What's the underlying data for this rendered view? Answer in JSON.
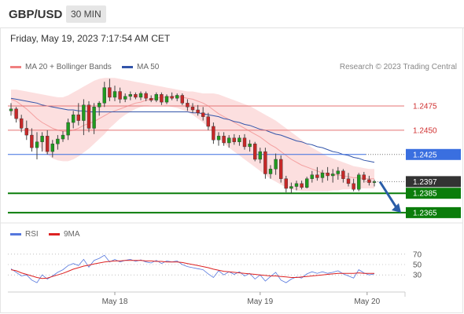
{
  "header": {
    "pair": "GBP/USD",
    "timeframe": "30 MIN"
  },
  "datetime": "Friday, May 19, 2023 7:17:54 AM CET",
  "credit": "Research © 2023 Trading Central",
  "colors": {
    "bollinger": "#f08080",
    "ma50": "#3355aa",
    "resistance": "#e57373",
    "pivot": "#3a6fe0",
    "support": "#0b7d0b",
    "rsi": "#5577dd",
    "rsi_ma": "#dd2222",
    "arrow": "#2a5da8"
  },
  "chart_data": [
    {
      "type": "candlestick",
      "legend": [
        {
          "name": "MA 20 + Bollinger Bands",
          "color": "#f08080"
        },
        {
          "name": "MA 50",
          "color": "#3355aa"
        }
      ],
      "ylim": [
        1.2356,
        1.2505
      ],
      "levels": [
        {
          "label": "1.2475",
          "value": 1.2475,
          "kind": "resistance"
        },
        {
          "label": "1.2450",
          "value": 1.245,
          "kind": "resistance"
        },
        {
          "label": "1.2425",
          "value": 1.2425,
          "kind": "pivot"
        },
        {
          "label": "1.2397",
          "value": 1.2397,
          "kind": "last"
        },
        {
          "label": "1.2385",
          "value": 1.2385,
          "kind": "support"
        },
        {
          "label": "1.2365",
          "value": 1.2365,
          "kind": "support"
        }
      ],
      "candles": [
        [
          1.247,
          1.2478,
          1.2465,
          1.2472
        ],
        [
          1.2472,
          1.2474,
          1.2458,
          1.2462
        ],
        [
          1.2462,
          1.2466,
          1.2448,
          1.2452
        ],
        [
          1.2452,
          1.246,
          1.244,
          1.2445
        ],
        [
          1.2445,
          1.2452,
          1.2428,
          1.2432
        ],
        [
          1.2432,
          1.2448,
          1.242,
          1.2438
        ],
        [
          1.2438,
          1.2448,
          1.2428,
          1.2444
        ],
        [
          1.2444,
          1.245,
          1.2425,
          1.2428
        ],
        [
          1.2428,
          1.244,
          1.2422,
          1.2436
        ],
        [
          1.2436,
          1.2445,
          1.243,
          1.2441
        ],
        [
          1.2441,
          1.2449,
          1.2438,
          1.2445
        ],
        [
          1.2445,
          1.2462,
          1.244,
          1.2458
        ],
        [
          1.2458,
          1.247,
          1.2452,
          1.2466
        ],
        [
          1.2466,
          1.2478,
          1.2455,
          1.246
        ],
        [
          1.246,
          1.2482,
          1.2445,
          1.2476
        ],
        [
          1.2476,
          1.248,
          1.2448,
          1.2452
        ],
        [
          1.2452,
          1.2478,
          1.2446,
          1.2474
        ],
        [
          1.2474,
          1.248,
          1.2465,
          1.2478
        ],
        [
          1.2478,
          1.25,
          1.2474,
          1.2494
        ],
        [
          1.2494,
          1.2503,
          1.248,
          1.2484
        ],
        [
          1.2484,
          1.2496,
          1.248,
          1.249
        ],
        [
          1.249,
          1.2494,
          1.2478,
          1.2482
        ],
        [
          1.2482,
          1.2488,
          1.2479,
          1.2485
        ],
        [
          1.2485,
          1.249,
          1.2481,
          1.2487
        ],
        [
          1.2487,
          1.2489,
          1.2482,
          1.2484
        ],
        [
          1.2484,
          1.249,
          1.2481,
          1.2488
        ],
        [
          1.2488,
          1.249,
          1.248,
          1.2483
        ],
        [
          1.2483,
          1.2486,
          1.2479,
          1.2481
        ],
        [
          1.2481,
          1.2489,
          1.2479,
          1.2487
        ],
        [
          1.2487,
          1.2489,
          1.2476,
          1.2479
        ],
        [
          1.2479,
          1.2487,
          1.2477,
          1.2485
        ],
        [
          1.2485,
          1.2489,
          1.2481,
          1.2483
        ],
        [
          1.2483,
          1.2488,
          1.248,
          1.2486
        ],
        [
          1.2486,
          1.2488,
          1.2476,
          1.2478
        ],
        [
          1.2478,
          1.2482,
          1.247,
          1.2474
        ],
        [
          1.2474,
          1.2478,
          1.2468,
          1.2471
        ],
        [
          1.2471,
          1.2476,
          1.2465,
          1.2468
        ],
        [
          1.2468,
          1.2474,
          1.246,
          1.2464
        ],
        [
          1.2464,
          1.2468,
          1.245,
          1.2454
        ],
        [
          1.2454,
          1.2458,
          1.2436,
          1.244
        ],
        [
          1.244,
          1.2448,
          1.2434,
          1.2444
        ],
        [
          1.2444,
          1.2448,
          1.2434,
          1.2437
        ],
        [
          1.2437,
          1.2445,
          1.2432,
          1.2442
        ],
        [
          1.2442,
          1.2446,
          1.2435,
          1.2438
        ],
        [
          1.2438,
          1.2445,
          1.2434,
          1.2442
        ],
        [
          1.2442,
          1.2446,
          1.243,
          1.2433
        ],
        [
          1.2433,
          1.244,
          1.2428,
          1.2436
        ],
        [
          1.2436,
          1.2438,
          1.2418,
          1.242
        ],
        [
          1.242,
          1.2432,
          1.2416,
          1.2428
        ],
        [
          1.2428,
          1.2432,
          1.24,
          1.2405
        ],
        [
          1.2405,
          1.2414,
          1.24,
          1.241
        ],
        [
          1.241,
          1.2426,
          1.2404,
          1.242
        ],
        [
          1.242,
          1.2424,
          1.2396,
          1.24
        ],
        [
          1.24,
          1.2403,
          1.2386,
          1.239
        ],
        [
          1.239,
          1.2396,
          1.2385,
          1.2392
        ],
        [
          1.2392,
          1.2398,
          1.2388,
          1.2395
        ],
        [
          1.2395,
          1.2398,
          1.2389,
          1.2391
        ],
        [
          1.2391,
          1.2402,
          1.239,
          1.24
        ],
        [
          1.24,
          1.2408,
          1.2396,
          1.2404
        ],
        [
          1.2404,
          1.2412,
          1.2398,
          1.2401
        ],
        [
          1.2401,
          1.2409,
          1.2396,
          1.2406
        ],
        [
          1.2406,
          1.2412,
          1.2398,
          1.2403
        ],
        [
          1.2403,
          1.241,
          1.2396,
          1.2405
        ],
        [
          1.2405,
          1.2412,
          1.2399,
          1.2408
        ],
        [
          1.2408,
          1.241,
          1.2396,
          1.24
        ],
        [
          1.24,
          1.2406,
          1.2392,
          1.2395
        ],
        [
          1.2395,
          1.24,
          1.2387,
          1.2389
        ],
        [
          1.2389,
          1.2406,
          1.2387,
          1.2404
        ],
        [
          1.2404,
          1.2407,
          1.2396,
          1.2399
        ],
        [
          1.2399,
          1.2403,
          1.2393,
          1.2396
        ],
        [
          1.2396,
          1.2399,
          1.2392,
          1.2397
        ]
      ],
      "ma20": [
        1.2482,
        1.248,
        1.2476,
        1.2472,
        1.2467,
        1.2462,
        1.2458,
        1.2455,
        1.2452,
        1.245,
        1.2449,
        1.2449,
        1.245,
        1.2452,
        1.2455,
        1.2457,
        1.2459,
        1.2462,
        1.2465,
        1.2468,
        1.247,
        1.2472,
        1.2474,
        1.2476,
        1.2478,
        1.2479,
        1.2481,
        1.2482,
        1.2483,
        1.2484,
        1.2484,
        1.2485,
        1.2485,
        1.2484,
        1.2483,
        1.2482,
        1.248,
        1.2478,
        1.2475,
        1.2471,
        1.2467,
        1.2464,
        1.2461,
        1.2458,
        1.2455,
        1.2452,
        1.2449,
        1.2446,
        1.2443,
        1.2439,
        1.2435,
        1.2432,
        1.2428,
        1.2424,
        1.242,
        1.2417,
        1.2414,
        1.2412,
        1.241,
        1.2408,
        1.2406,
        1.2405,
        1.2404,
        1.2404,
        1.2403,
        1.2402,
        1.2401,
        1.2401,
        1.24,
        1.24,
        1.24
      ],
      "bb_upper": [
        1.2492,
        1.2492,
        1.2491,
        1.249,
        1.2489,
        1.2488,
        1.2487,
        1.2486,
        1.2485,
        1.2484,
        1.2484,
        1.2486,
        1.2489,
        1.2492,
        1.2495,
        1.2498,
        1.2501,
        1.2503,
        1.2504,
        1.2504,
        1.2504,
        1.2503,
        1.2502,
        1.2501,
        1.25,
        1.2499,
        1.2498,
        1.2497,
        1.2496,
        1.2495,
        1.2494,
        1.2493,
        1.2492,
        1.2491,
        1.249,
        1.249,
        1.2489,
        1.2488,
        1.2488,
        1.2488,
        1.2487,
        1.2485,
        1.2483,
        1.2481,
        1.2479,
        1.2477,
        1.2475,
        1.2472,
        1.2469,
        1.2466,
        1.2463,
        1.246,
        1.2456,
        1.2452,
        1.2448,
        1.2444,
        1.244,
        1.2436,
        1.2432,
        1.2429,
        1.2426,
        1.2423,
        1.2421,
        1.2419,
        1.2417,
        1.2415,
        1.2413,
        1.2412,
        1.2411,
        1.241,
        1.241
      ],
      "bb_lower": [
        1.2468,
        1.2462,
        1.2456,
        1.245,
        1.2443,
        1.2436,
        1.243,
        1.2425,
        1.2421,
        1.2419,
        1.2418,
        1.2418,
        1.242,
        1.2423,
        1.2427,
        1.2431,
        1.2436,
        1.2441,
        1.2446,
        1.2452,
        1.2457,
        1.2462,
        1.2466,
        1.2469,
        1.2472,
        1.2474,
        1.2475,
        1.2476,
        1.2476,
        1.2476,
        1.2475,
        1.2474,
        1.2473,
        1.2471,
        1.2469,
        1.2466,
        1.2462,
        1.2458,
        1.2453,
        1.2447,
        1.2442,
        1.2437,
        1.2432,
        1.2428,
        1.2424,
        1.242,
        1.2416,
        1.2412,
        1.2408,
        1.2404,
        1.24,
        1.2397,
        1.2394,
        1.2391,
        1.2389,
        1.2388,
        1.2387,
        1.2387,
        1.2387,
        1.2387,
        1.2387,
        1.2387,
        1.2388,
        1.2388,
        1.2389,
        1.2389,
        1.239,
        1.239,
        1.239,
        1.239,
        1.239
      ],
      "ma50": [
        1.2483,
        1.2482,
        1.2481,
        1.248,
        1.2479,
        1.2478,
        1.2476,
        1.2475,
        1.2474,
        1.2473,
        1.2472,
        1.2471,
        1.2471,
        1.247,
        1.247,
        1.2469,
        1.2469,
        1.2469,
        1.2469,
        1.2469,
        1.2469,
        1.2469,
        1.2469,
        1.2469,
        1.2469,
        1.2469,
        1.2469,
        1.2469,
        1.2469,
        1.2469,
        1.2469,
        1.2469,
        1.2469,
        1.2469,
        1.2469,
        1.2468,
        1.2468,
        1.2467,
        1.2466,
        1.2465,
        1.2464,
        1.2462,
        1.2461,
        1.2459,
        1.2458,
        1.2456,
        1.2455,
        1.2453,
        1.2451,
        1.245,
        1.2448,
        1.2446,
        1.2445,
        1.2443,
        1.2441,
        1.2439,
        1.2438,
        1.2436,
        1.2435,
        1.2433,
        1.2432,
        1.243,
        1.2428,
        1.2427,
        1.2425,
        1.2424,
        1.2422,
        1.2421,
        1.2419,
        1.2418,
        1.2417
      ],
      "forecast": {
        "from": 1.2397,
        "to": 1.2365
      }
    },
    {
      "type": "line",
      "legend": [
        {
          "name": "RSI",
          "color": "#5577dd"
        },
        {
          "name": "9MA",
          "color": "#dd2222"
        }
      ],
      "ylim": [
        0,
        100
      ],
      "yticks": [
        70,
        50,
        30
      ],
      "rsi": [
        42,
        35,
        28,
        30,
        20,
        15,
        30,
        22,
        28,
        35,
        40,
        48,
        52,
        48,
        60,
        45,
        58,
        62,
        68,
        55,
        60,
        55,
        58,
        60,
        56,
        59,
        55,
        53,
        58,
        52,
        57,
        55,
        57,
        50,
        46,
        44,
        42,
        40,
        32,
        25,
        38,
        30,
        36,
        31,
        36,
        28,
        33,
        22,
        30,
        18,
        27,
        35,
        20,
        15,
        22,
        26,
        24,
        32,
        36,
        33,
        36,
        33,
        35,
        38,
        32,
        28,
        24,
        40,
        34,
        30,
        32
      ],
      "rsi_ma": [
        40,
        38,
        34,
        31,
        28,
        25,
        23,
        24,
        27,
        30,
        33,
        37,
        41,
        44,
        47,
        49,
        51,
        53,
        55,
        56,
        57,
        57,
        58,
        58,
        58,
        58,
        57,
        57,
        56,
        56,
        55,
        55,
        55,
        54,
        52,
        50,
        48,
        46,
        44,
        41,
        39,
        37,
        36,
        35,
        34,
        33,
        32,
        31,
        30,
        29,
        28,
        28,
        27,
        26,
        25,
        25,
        26,
        27,
        28,
        29,
        30,
        31,
        32,
        33,
        33,
        33,
        33,
        34,
        33,
        33,
        33
      ],
      "xlabels": [
        {
          "label": "May 18",
          "index": 20
        },
        {
          "label": "May 19",
          "index": 48
        },
        {
          "label": "May 20",
          "index": 58
        }
      ]
    }
  ]
}
